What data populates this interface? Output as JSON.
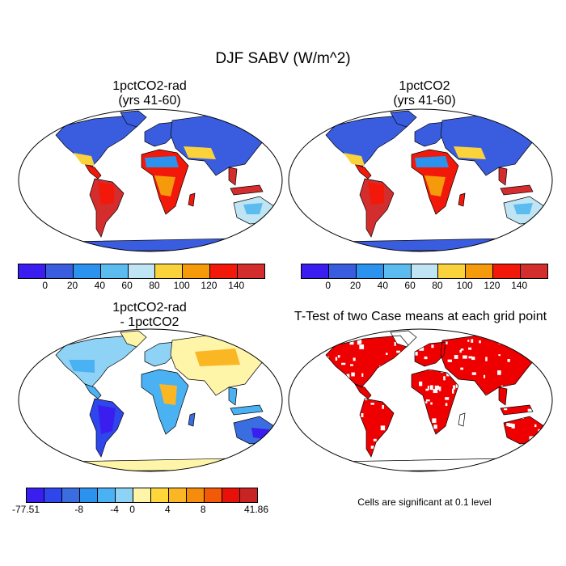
{
  "title": "DJF SABV (W/m^2)",
  "panels": [
    {
      "title": "1pctCO2-rad\n(yrs 41-60)",
      "colorbar": "abs"
    },
    {
      "title": "1pctCO2\n(yrs 41-60)",
      "colorbar": "abs"
    },
    {
      "title": "1pctCO2-rad\n- 1pctCO2",
      "colorbar": "diff"
    },
    {
      "title": "T-Test of two Case means at each grid point",
      "colorbar": "none"
    }
  ],
  "colorbar_abs": {
    "colors": [
      "#3a1ef0",
      "#3a5de0",
      "#2b92ee",
      "#5cbcf0",
      "#bfe4f3",
      "#fad23c",
      "#f59a0a",
      "#f2180a",
      "#d32d2d"
    ],
    "labels": [
      "0",
      "20",
      "40",
      "60",
      "80",
      "100",
      "120",
      "140"
    ]
  },
  "colorbar_diff": {
    "colors": [
      "#3a1ef0",
      "#2f46ec",
      "#3a6ee0",
      "#2b92ee",
      "#4ab2f2",
      "#8ed2f5",
      "#fff5a8",
      "#ffd73a",
      "#fbb623",
      "#f58c0c",
      "#f25a08",
      "#e8110a",
      "#c82424"
    ],
    "labels": [
      "-77.51",
      "-8",
      "-4",
      "0",
      "4",
      "8",
      "41.86"
    ]
  },
  "ttest_color": "#ee0000",
  "note": "Cells are significant at 0.1 level"
}
